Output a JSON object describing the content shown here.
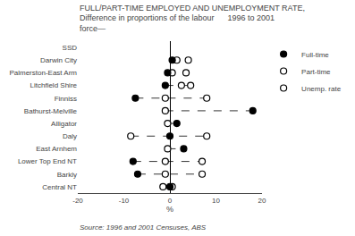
{
  "chart_data": {
    "type": "dot",
    "title": "FULL/PART-TIME EMPLOYED AND UNEMPLOYMENT RATE,",
    "subtitle": [
      "Difference in proportions of the labour      1996 to 2001",
      "force—"
    ],
    "categories": [
      "SSD",
      "Darwin City",
      "Palmerston-East Arm",
      "Litchfield Shire",
      "Finniss",
      "Bathurst-Melville",
      "Alligator",
      "Daly",
      "East Arnhem",
      "Lower Top End NT",
      "Barkly",
      "Central NT"
    ],
    "series": [
      {
        "name": "Full-time",
        "color": "#000000",
        "marker": "circle",
        "values": [
          null,
          0.5,
          -0.5,
          -1.0,
          -7.5,
          18.0,
          1.5,
          0.0,
          3.0,
          -8.0,
          -7.0,
          0.0
        ]
      },
      {
        "name": "Part-time",
        "color": "#000000",
        "marker": "circle-open",
        "values": [
          null,
          1.5,
          0.5,
          2.5,
          -1.0,
          -1.0,
          -0.5,
          -8.5,
          -0.5,
          -1.0,
          -1.0,
          -1.5
        ]
      },
      {
        "name": "Unemp. rate",
        "color": "#000000",
        "marker": "circle-open",
        "values": [
          null,
          4.0,
          3.5,
          4.5,
          8.0,
          null,
          null,
          8.0,
          null,
          7.0,
          7.0,
          0.5
        ]
      }
    ],
    "xlabel": "%",
    "xlim": [
      -20,
      20
    ],
    "xticks": [
      -20,
      -10,
      0,
      10,
      20
    ],
    "grid": false,
    "legend": "right",
    "annotations": [
      "Source: 1996 and 2001 Censuses, ABS"
    ]
  }
}
